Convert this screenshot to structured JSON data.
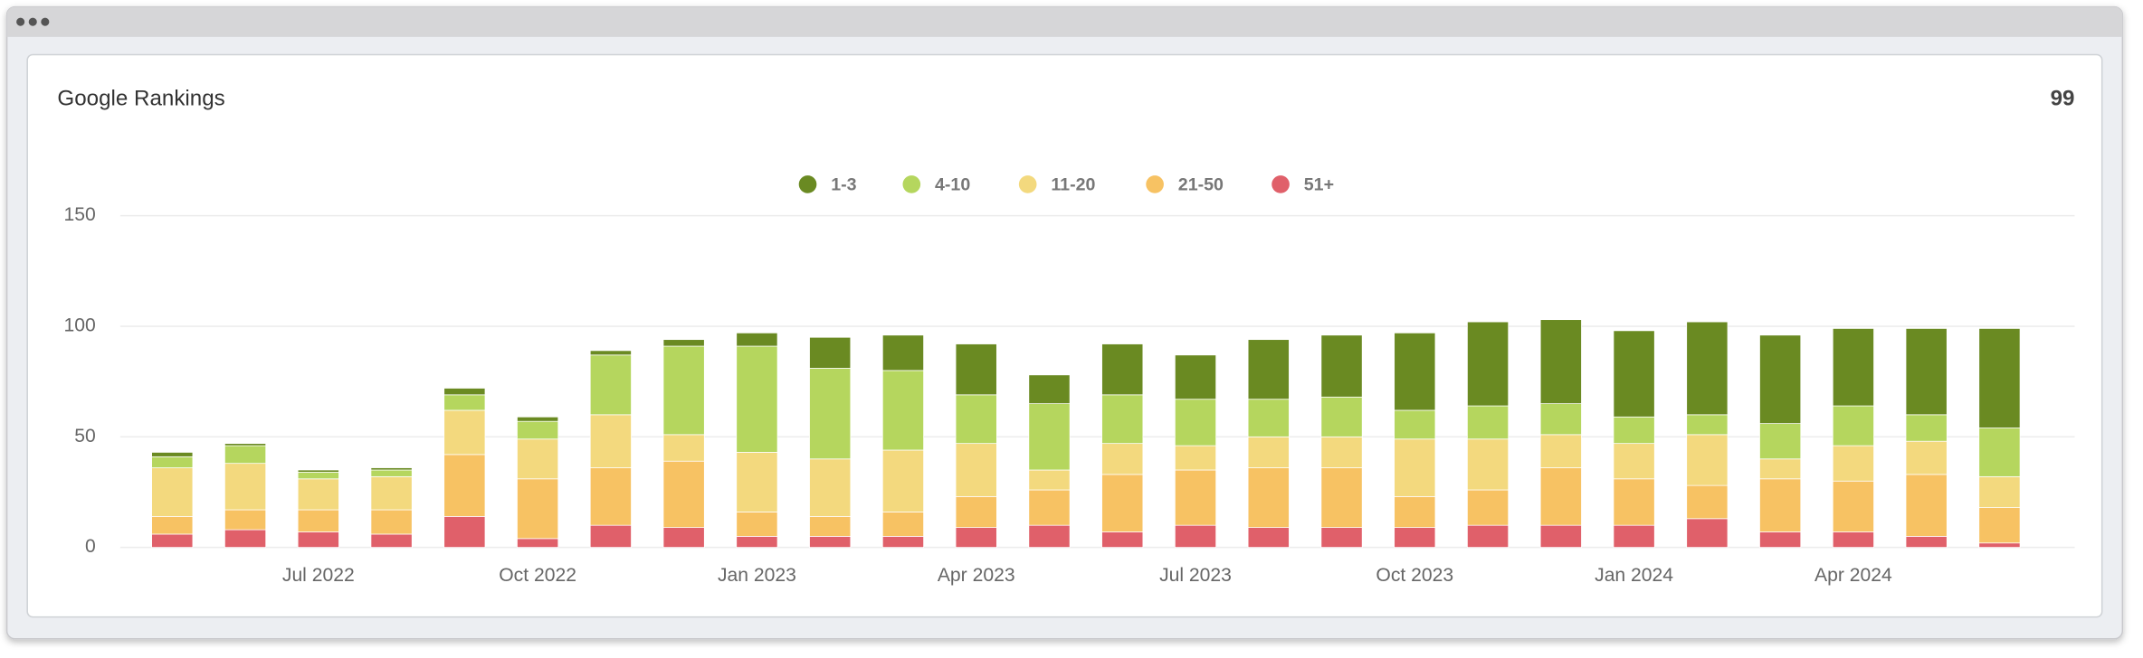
{
  "chart_data": {
    "type": "stacked_bar",
    "title": "Google Rankings",
    "summary_value": 99,
    "categories": [
      null,
      null,
      "Jul 2022",
      null,
      null,
      "Oct 2022",
      null,
      null,
      "Jan 2023",
      null,
      null,
      "Apr 2023",
      null,
      null,
      "Jul 2023",
      null,
      null,
      "Oct 2023",
      null,
      null,
      "Jan 2024",
      null,
      null,
      "Apr 2024",
      null,
      null
    ],
    "series": [
      {
        "name": "1-3",
        "color": "#6a8a22",
        "values": [
          2,
          1,
          1,
          1,
          3,
          2,
          2,
          3,
          6,
          14,
          16,
          23,
          13,
          23,
          20,
          27,
          28,
          35,
          38,
          38,
          39,
          42,
          40,
          35,
          39,
          45
        ]
      },
      {
        "name": "4-10",
        "color": "#b5d65e",
        "values": [
          5,
          8,
          3,
          3,
          7,
          8,
          27,
          40,
          48,
          41,
          36,
          22,
          30,
          22,
          21,
          17,
          18,
          13,
          15,
          14,
          12,
          9,
          16,
          18,
          12,
          22
        ]
      },
      {
        "name": "11-20",
        "color": "#f3d97e",
        "values": [
          22,
          21,
          14,
          15,
          20,
          18,
          24,
          12,
          27,
          26,
          28,
          24,
          9,
          14,
          11,
          14,
          14,
          26,
          23,
          15,
          16,
          23,
          9,
          16,
          15,
          14
        ]
      },
      {
        "name": "21-50",
        "color": "#f7c263",
        "values": [
          8,
          9,
          10,
          11,
          28,
          27,
          26,
          30,
          11,
          9,
          11,
          14,
          16,
          26,
          25,
          27,
          27,
          14,
          16,
          26,
          21,
          15,
          24,
          23,
          28,
          16
        ]
      },
      {
        "name": "51+",
        "color": "#e0606a",
        "values": [
          6,
          8,
          7,
          6,
          14,
          4,
          10,
          9,
          5,
          5,
          5,
          9,
          10,
          7,
          10,
          9,
          9,
          9,
          10,
          10,
          10,
          13,
          7,
          7,
          5,
          2
        ]
      }
    ],
    "ylim": [
      0,
      150
    ],
    "yticks": [
      0,
      50,
      100,
      150
    ],
    "grid": true,
    "legend": "top"
  }
}
